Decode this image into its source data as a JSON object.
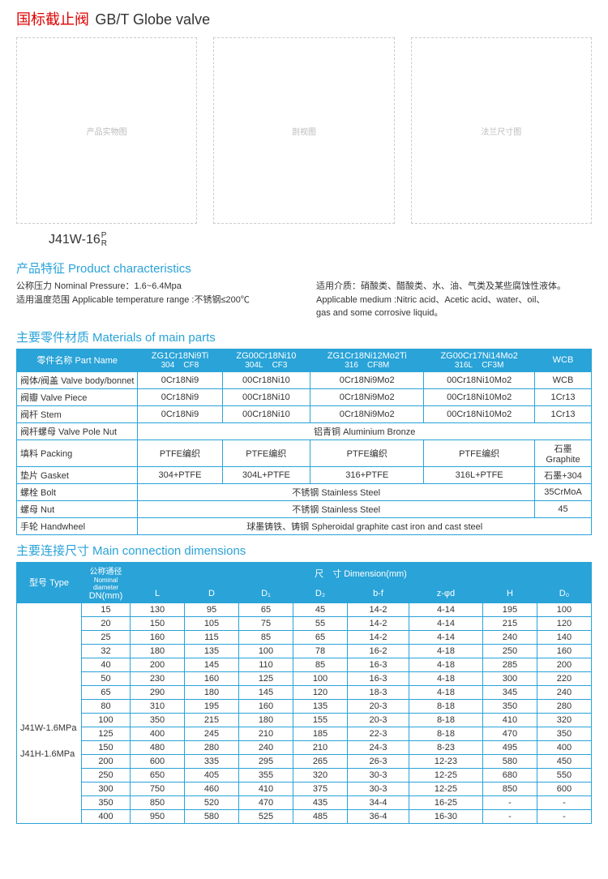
{
  "title": {
    "cn": "国标截止阀",
    "en": "GB/T Globe valve"
  },
  "model_label": "J41W-16",
  "model_suffix_top": "P",
  "model_suffix_bot": "R",
  "placeholders": [
    "产品实物图",
    "剖视图",
    "法兰尺寸图"
  ],
  "sections": {
    "charac": {
      "cn": "产品特征",
      "en": "Product characteristics"
    },
    "materials": {
      "cn": "主要零件材质",
      "en": "Materials of main parts"
    },
    "dimensions": {
      "cn": "主要连接尺寸",
      "en": "Main connection dimensions"
    }
  },
  "charac_left": [
    "公称压力 Nominal Pressure：1.6~6.4Mpa",
    "适用温度范围 Applicable temperature range :不锈钢≤200℃"
  ],
  "charac_right": [
    "适用介质：硝酸类、醋酸类、水、油、气类及某些腐蚀性液体。",
    "Applicable medium :Nitric acid、Acetic acid、water、oil、",
    "gas and some corrosive liquid。"
  ],
  "materials": {
    "header_part": "零件名称 Part Name",
    "header_cols": [
      {
        "l1": "ZG1Cr18Ni9Ti",
        "l2a": "304",
        "l2b": "CF8"
      },
      {
        "l1": "ZG00Cr18Ni10",
        "l2a": "304L",
        "l2b": "CF3"
      },
      {
        "l1": "ZG1Cr18Ni12Mo2Ti",
        "l2a": "316",
        "l2b": "CF8M"
      },
      {
        "l1": "ZG00Cr17Ni14Mo2",
        "l2a": "316L",
        "l2b": "CF3M"
      }
    ],
    "header_wcb": "WCB",
    "rows": [
      {
        "name": "阀体/阀盖 Valve body/bonnet",
        "c": [
          "0Cr18Ni9",
          "00Cr18Ni10",
          "0Cr18Ni9Mo2",
          "00Cr18Ni10Mo2",
          "WCB"
        ]
      },
      {
        "name": "阀瓣 Valve Piece",
        "c": [
          "0Cr18Ni9",
          "00Cr18Ni10",
          "0Cr18Ni9Mo2",
          "00Cr18Ni10Mo2",
          "1Cr13"
        ]
      },
      {
        "name": "阀杆 Stem",
        "c": [
          "0Cr18Ni9",
          "00Cr18Ni10",
          "0Cr18Ni9Mo2",
          "00Cr18Ni10Mo2",
          "1Cr13"
        ]
      },
      {
        "name": "阀杆螺母 Valve Pole Nut",
        "span5": "铝青铜 Aluminium Bronze"
      },
      {
        "name": "填料 Packing",
        "c": [
          "PTFE编织",
          "PTFE编织",
          "PTFE编织",
          "PTFE编织",
          "石墨 Graphite"
        ]
      },
      {
        "name": "垫片 Gasket",
        "c": [
          "304+PTFE",
          "304L+PTFE",
          "316+PTFE",
          "316L+PTFE",
          "石墨+304"
        ]
      },
      {
        "name": "螺栓 Bolt",
        "span4": "不锈钢 Stainless Steel",
        "last": "35CrMoA"
      },
      {
        "name": "螺母 Nut",
        "span4": "不锈钢 Stainless Steel",
        "last": "45"
      },
      {
        "name": "手轮 Handwheel",
        "span5": "球墨铸铁、铸钢 Spheroidal graphite cast iron and cast steel"
      }
    ]
  },
  "dimensions": {
    "type_label": "型号 Type",
    "dn_label_line1": "公称通径",
    "dn_label_line2": "Nominal diameter",
    "dn_label_line3": "DN(mm)",
    "dim_label": "尺　寸 Dimension(mm)",
    "cols": [
      "L",
      "D",
      "D₁",
      "D₂",
      "b-f",
      "z-φd",
      "H",
      "D₀"
    ],
    "types": [
      "J41W-1.6MPa",
      "",
      "J41H-1.6MPa"
    ],
    "rows": [
      [
        "15",
        "130",
        "95",
        "65",
        "45",
        "14-2",
        "4-14",
        "195",
        "100"
      ],
      [
        "20",
        "150",
        "105",
        "75",
        "55",
        "14-2",
        "4-14",
        "215",
        "120"
      ],
      [
        "25",
        "160",
        "115",
        "85",
        "65",
        "14-2",
        "4-14",
        "240",
        "140"
      ],
      [
        "32",
        "180",
        "135",
        "100",
        "78",
        "16-2",
        "4-18",
        "250",
        "160"
      ],
      [
        "40",
        "200",
        "145",
        "110",
        "85",
        "16-3",
        "4-18",
        "285",
        "200"
      ],
      [
        "50",
        "230",
        "160",
        "125",
        "100",
        "16-3",
        "4-18",
        "300",
        "220"
      ],
      [
        "65",
        "290",
        "180",
        "145",
        "120",
        "18-3",
        "4-18",
        "345",
        "240"
      ],
      [
        "80",
        "310",
        "195",
        "160",
        "135",
        "20-3",
        "8-18",
        "350",
        "280"
      ],
      [
        "100",
        "350",
        "215",
        "180",
        "155",
        "20-3",
        "8-18",
        "410",
        "320"
      ],
      [
        "125",
        "400",
        "245",
        "210",
        "185",
        "22-3",
        "8-18",
        "470",
        "350"
      ],
      [
        "150",
        "480",
        "280",
        "240",
        "210",
        "24-3",
        "8-23",
        "495",
        "400"
      ],
      [
        "200",
        "600",
        "335",
        "295",
        "265",
        "26-3",
        "12-23",
        "580",
        "450"
      ],
      [
        "250",
        "650",
        "405",
        "355",
        "320",
        "30-3",
        "12-25",
        "680",
        "550"
      ],
      [
        "300",
        "750",
        "460",
        "410",
        "375",
        "30-3",
        "12-25",
        "850",
        "600"
      ],
      [
        "350",
        "850",
        "520",
        "470",
        "435",
        "34-4",
        "16-25",
        "-",
        "-"
      ],
      [
        "400",
        "950",
        "580",
        "525",
        "485",
        "36-4",
        "16-30",
        "-",
        "-"
      ]
    ]
  }
}
